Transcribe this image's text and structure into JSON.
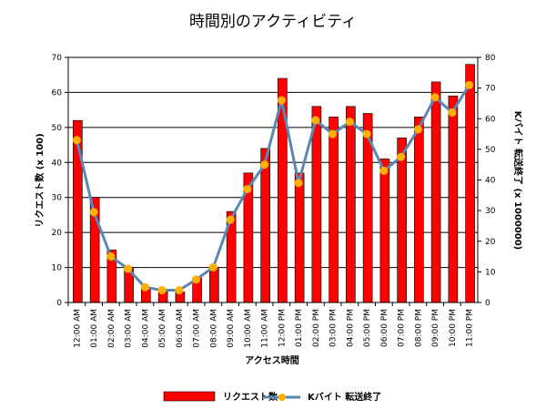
{
  "chart_data": {
    "type": "bar+line",
    "title": "時間別のアクティビティ",
    "xlabel": "アクセス時間",
    "categories": [
      "12:00 AM",
      "01:00 AM",
      "02:00 AM",
      "03:00 AM",
      "04:00 AM",
      "05:00 AM",
      "06:00 AM",
      "07:00 AM",
      "08:00 AM",
      "09:00 AM",
      "10:00 AM",
      "11:00 AM",
      "12:00 PM",
      "01:00 PM",
      "02:00 PM",
      "03:00 PM",
      "04:00 PM",
      "05:00 PM",
      "06:00 PM",
      "07:00 PM",
      "08:00 PM",
      "09:00 PM",
      "10:00 PM",
      "11:00 PM"
    ],
    "series": [
      {
        "name": "リクエスト数",
        "kind": "bar",
        "axis": "left",
        "color": "#ff0000",
        "values": [
          52,
          30,
          15,
          10,
          4,
          3,
          3,
          7,
          10,
          26,
          37,
          44,
          64,
          37,
          56,
          53,
          56,
          54,
          41,
          47,
          53,
          63,
          59,
          68
        ]
      },
      {
        "name": "Kバイト 転送終了",
        "kind": "line",
        "axis": "right",
        "color": "#5b87b3",
        "marker_color": "#ffb000",
        "values": [
          53,
          29.5,
          15,
          11,
          5,
          4,
          4,
          7.5,
          11.5,
          27,
          37,
          45,
          66,
          39,
          59.5,
          55,
          59,
          55,
          43,
          47.5,
          56.5,
          67,
          62,
          71
        ]
      }
    ],
    "left_axis": {
      "label": "リクエスト数 (x 100)",
      "min": 0,
      "max": 70,
      "step": 10,
      "ticks": [
        "0",
        "10",
        "20",
        "30",
        "40",
        "50",
        "60",
        "70"
      ]
    },
    "right_axis": {
      "label": "Kバイト 転送終了 (x 1000000)",
      "min": 0,
      "max": 80,
      "step": 10,
      "ticks": [
        "0",
        "10",
        "20",
        "30",
        "40",
        "50",
        "60",
        "70",
        "80"
      ]
    },
    "grid": true,
    "legend_position": "bottom"
  }
}
